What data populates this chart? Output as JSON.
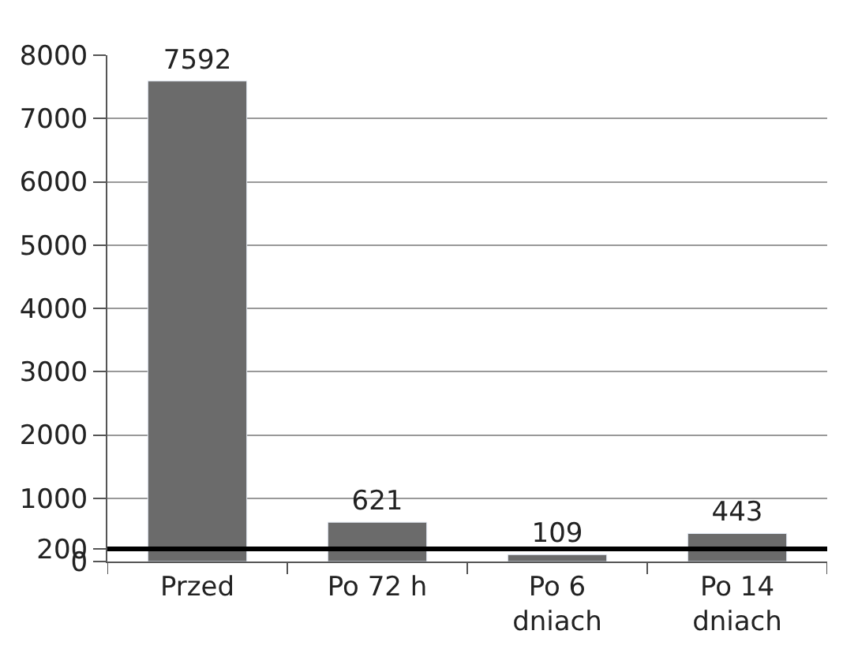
{
  "chart_data": {
    "type": "bar",
    "categories": [
      "Przed",
      "Po 72 h",
      "Po 6\ndniach",
      "Po 14\ndniach"
    ],
    "values": [
      7592,
      621,
      109,
      443
    ],
    "color": "#6b6b6b",
    "ylim": [
      0,
      8000
    ],
    "yticks": [
      0,
      200,
      1000,
      2000,
      3000,
      4000,
      5000,
      6000,
      7000,
      8000
    ],
    "grid": "y",
    "data_labels": true,
    "ref_lines": [
      {
        "axis": "y",
        "value": 200,
        "color": "#000000"
      }
    ]
  }
}
